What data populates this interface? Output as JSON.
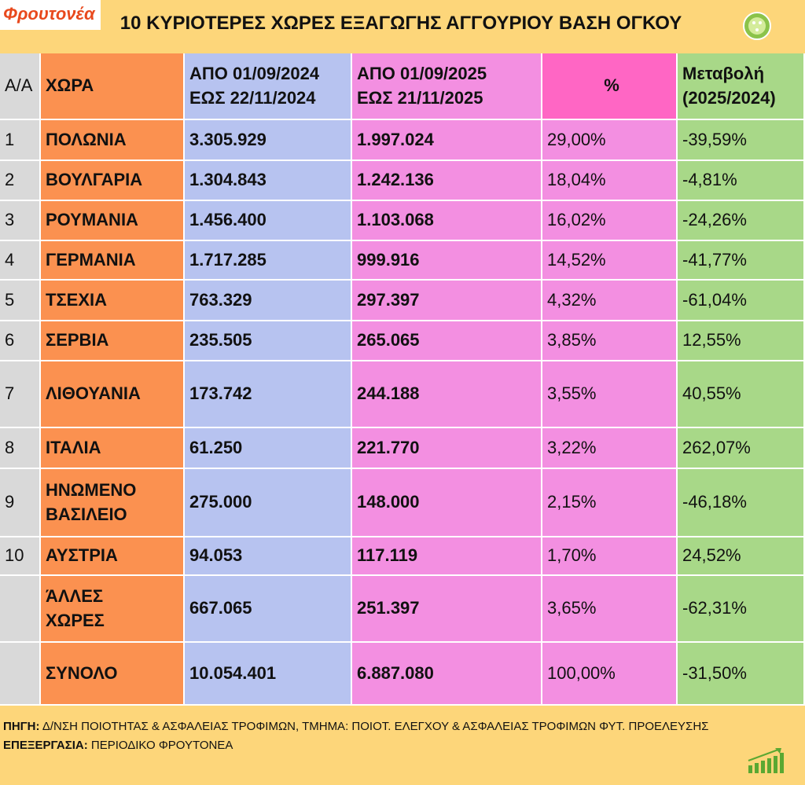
{
  "header": {
    "logo": "Φρουτονέα",
    "title": "10 ΚΥΡΙΟΤΕΡΕΣ ΧΩΡΕΣ ΕΞΑΓΩΓΗΣ ΑΓΓΟΥΡΙΟΥ ΒΑΣΗ ΟΓΚΟΥ"
  },
  "table": {
    "columns": [
      [
        "Α/Α"
      ],
      [
        "ΧΩΡΑ"
      ],
      [
        "ΑΠΟ 01/09/2024",
        "ΕΩΣ  22/11/2024"
      ],
      [
        "ΑΠΟ 01/09/2025",
        "ΕΩΣ  21/11/2025"
      ],
      [
        "%"
      ],
      [
        "Μεταβολή",
        "(2025/2024)"
      ]
    ],
    "rows": [
      {
        "no": "1",
        "country": [
          "ΠΟΛΩΝΙΑ"
        ],
        "y2024": "3.305.929",
        "y2025": "1.997.024",
        "share": "29,00%",
        "change": "-39,59%"
      },
      {
        "no": "2",
        "country": [
          "ΒΟΥΛΓΑΡΙΑ"
        ],
        "y2024": "1.304.843",
        "y2025": "1.242.136",
        "share": "18,04%",
        "change": "-4,81%"
      },
      {
        "no": "3",
        "country": [
          "ΡΟΥΜΑΝΙΑ"
        ],
        "y2024": "1.456.400",
        "y2025": "1.103.068",
        "share": "16,02%",
        "change": "-24,26%"
      },
      {
        "no": "4",
        "country": [
          "ΓΕΡΜΑΝΙΑ"
        ],
        "y2024": "1.717.285",
        "y2025": "999.916",
        "share": "14,52%",
        "change": "-41,77%"
      },
      {
        "no": "5",
        "country": [
          "ΤΣΕΧΙΑ"
        ],
        "y2024": "763.329",
        "y2025": "297.397",
        "share": "4,32%",
        "change": "-61,04%"
      },
      {
        "no": "6",
        "country": [
          "ΣΕΡΒΙΑ"
        ],
        "y2024": "235.505",
        "y2025": "265.065",
        "share": "3,85%",
        "change": "12,55%"
      },
      {
        "no": "7",
        "country": [
          "ΛΙΘΟΥΑΝΙΑ"
        ],
        "y2024": "173.742",
        "y2025": "244.188",
        "share": "3,55%",
        "change": "40,55%"
      },
      {
        "no": "8",
        "country": [
          "ΙΤΑΛΙΑ"
        ],
        "y2024": "61.250",
        "y2025": "221.770",
        "share": "3,22%",
        "change": "262,07%"
      },
      {
        "no": "9",
        "country": [
          "ΗΝΩΜΕΝΟ",
          "ΒΑΣΙΛΕΙΟ"
        ],
        "y2024": "275.000",
        "y2025": "148.000",
        "share": "2,15%",
        "change": "-46,18%"
      },
      {
        "no": "10",
        "country": [
          "ΑΥΣΤΡΙΑ"
        ],
        "y2024": "94.053",
        "y2025": "117.119",
        "share": "1,70%",
        "change": "24,52%"
      },
      {
        "country": [
          "ΆΛΛΕΣ",
          "ΧΩΡΕΣ"
        ],
        "y2024": "667.065",
        "y2025": "251.397",
        "share": "3,65%",
        "change": "-62,31%"
      },
      {
        "country": [
          "ΣΥΝΟΛΟ"
        ],
        "y2024": "10.054.401",
        "y2025": "6.887.080",
        "share": "100,00%",
        "change": "-31,50%"
      }
    ]
  },
  "footer": {
    "source": {
      "label": "ΠΗΓΗ:",
      "text": " Δ/ΝΣΗ ΠΟΙΟΤΗΤΑΣ & ΑΣΦΑΛΕΙΑΣ ΤΡΟΦΙΜΩΝ, ΤΜΗΜΑ: ΠΟΙΟΤ. ΕΛΕΓΧΟΥ & ΑΣΦΑΛΕΙΑΣ ΤΡΟΦΙΜΩΝ ΦΥΤ. ΠΡΟΕΛΕΥΣΗΣ"
    },
    "processing": {
      "label": "ΕΠΕΞΕΡΓΑΣΙΑ:",
      "text": " ΠΕΡΙΟΔΙΚΟ ΦΡΟΥΤΟΝΕΑ"
    }
  }
}
